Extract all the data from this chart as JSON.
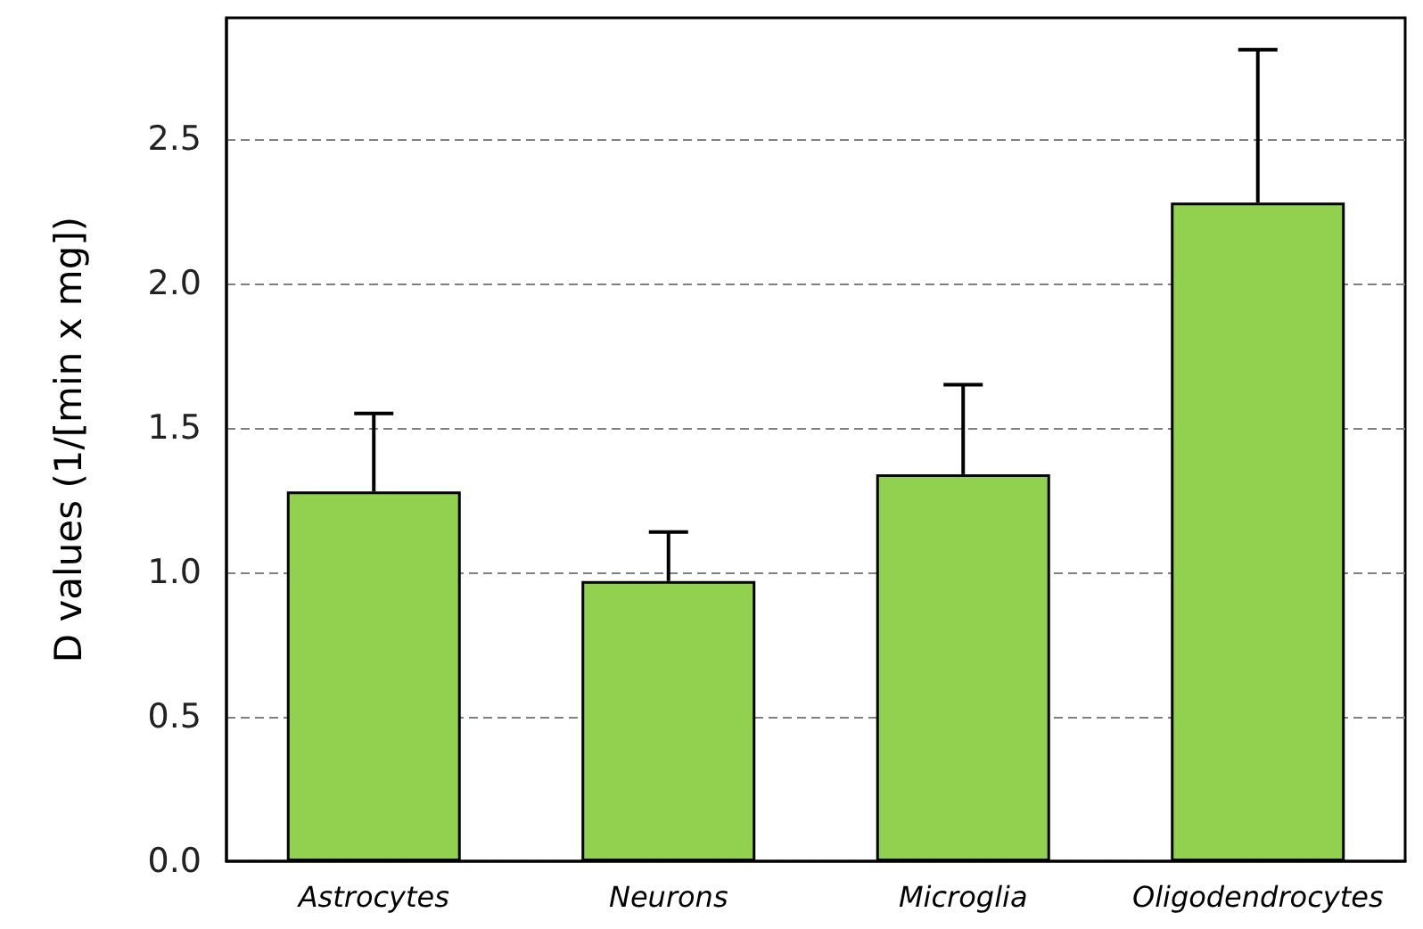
{
  "chart_data": {
    "type": "bar",
    "ylabel": "D values (1/[min x mg])",
    "categories": [
      "Astrocytes",
      "Neurons",
      "Microglia",
      "Oligodendrocytes"
    ],
    "values": [
      1.28,
      0.97,
      1.34,
      2.28
    ],
    "errors": [
      [
        1.28,
        1.55
      ],
      [
        0.97,
        1.14
      ],
      [
        1.34,
        1.65
      ],
      [
        2.28,
        2.81
      ]
    ],
    "color": "#92d050",
    "ylim": [
      0,
      2.92
    ],
    "yticks": [
      {
        "value": 0,
        "label": "0.0"
      },
      0.5,
      {
        "value": 1,
        "label": "1.0"
      },
      1.5,
      {
        "value": 2,
        "label": "2.0"
      },
      2.5
    ],
    "grid": "y"
  }
}
